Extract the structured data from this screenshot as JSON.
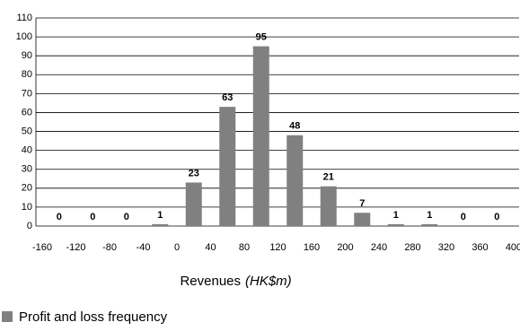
{
  "chart_data": {
    "type": "histogram",
    "bins": [
      -160,
      -120,
      -80,
      -40,
      0,
      40,
      80,
      120,
      160,
      200,
      240,
      280,
      320,
      360,
      400
    ],
    "values": [
      0,
      0,
      0,
      1,
      23,
      63,
      95,
      48,
      21,
      7,
      1,
      1,
      0,
      0
    ],
    "color": "#808080",
    "xlim": [
      -160,
      400
    ],
    "ylim": [
      0,
      110
    ],
    "yticks": [
      0,
      10,
      20,
      30,
      40,
      50,
      60,
      70,
      80,
      90,
      100,
      110
    ],
    "grid": true,
    "x_label": "Revenues",
    "x_label_unit": "(HK$m)",
    "legend": "Profit and loss frequency"
  }
}
